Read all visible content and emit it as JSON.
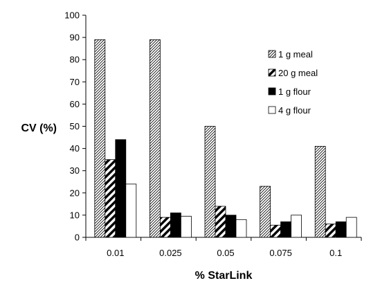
{
  "chart_data": {
    "type": "bar",
    "ylabel": "CV (%)",
    "xlabel": "% StarLink",
    "ylim": [
      0,
      100
    ],
    "yticks": [
      "0",
      "10",
      "20",
      "30",
      "40",
      "50",
      "60",
      "70",
      "80",
      "90",
      "100"
    ],
    "categories": [
      "0.01",
      "0.025",
      "0.05",
      "0.075",
      "0.1"
    ],
    "series": [
      {
        "name": "1 g meal",
        "pattern": "fine-diagonal",
        "values": [
          89,
          89,
          50,
          23,
          41
        ]
      },
      {
        "name": "20 g meal",
        "pattern": "bold-diagonal",
        "values": [
          35,
          9,
          14,
          5.5,
          6
        ]
      },
      {
        "name": "1 g flour",
        "pattern": "solid-black",
        "values": [
          44,
          11,
          10,
          7,
          7
        ]
      },
      {
        "name": "4 g flour",
        "pattern": "white",
        "values": [
          24,
          9.5,
          8,
          10,
          9
        ]
      }
    ],
    "grid": false,
    "legend": "right"
  }
}
